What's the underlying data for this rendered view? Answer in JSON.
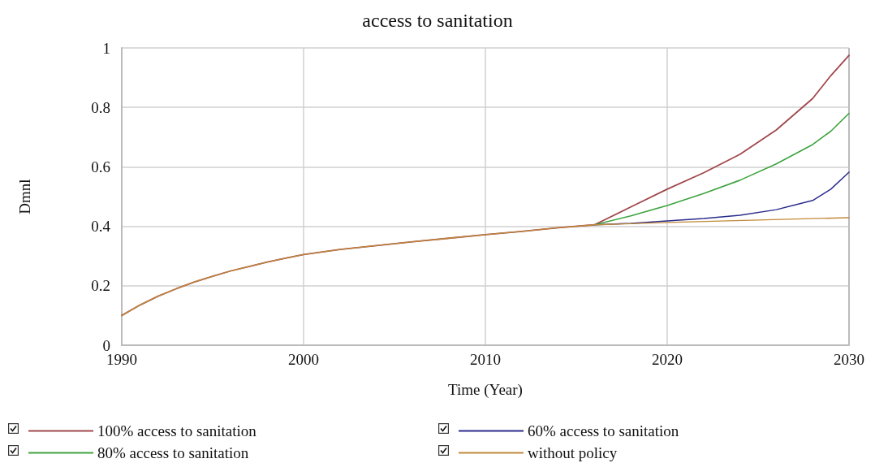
{
  "chart_data": {
    "type": "line",
    "title": "access to sanitation",
    "xlabel": "Time (Year)",
    "ylabel": "Dmnl",
    "xlim": [
      1990,
      2030
    ],
    "xticks": [
      1990,
      2000,
      2010,
      2020,
      2030
    ],
    "ylim": [
      0,
      1
    ],
    "yticks": [
      0,
      0.2,
      0.4,
      0.6,
      0.8,
      1
    ],
    "grid": true,
    "legend": "bottom",
    "marker": "none",
    "line_style": "solid",
    "series": [
      {
        "name": "100% access to sanitation",
        "color": "#a0484c",
        "x": [
          1990,
          1991,
          1992,
          1993,
          1994,
          1995,
          1996,
          1997,
          1998,
          1999,
          2000,
          2002,
          2004,
          2006,
          2008,
          2010,
          2012,
          2014,
          2016,
          2018,
          2020,
          2022,
          2024,
          2026,
          2028,
          2029,
          2030
        ],
        "values": [
          0.1,
          0.135,
          0.165,
          0.19,
          0.213,
          0.232,
          0.25,
          0.265,
          0.28,
          0.293,
          0.305,
          0.322,
          0.335,
          0.348,
          0.36,
          0.372,
          0.383,
          0.395,
          0.405,
          0.465,
          0.525,
          0.58,
          0.642,
          0.724,
          0.83,
          0.907,
          0.975
        ]
      },
      {
        "name": "80% access to sanitation",
        "color": "#3fa33f",
        "x": [
          2016,
          2018,
          2020,
          2022,
          2024,
          2026,
          2028,
          2029,
          2030
        ],
        "values": [
          0.405,
          0.435,
          0.47,
          0.51,
          0.555,
          0.61,
          0.675,
          0.72,
          0.78
        ]
      },
      {
        "name": "60% access to sanitation",
        "color": "#2b2b8c",
        "x": [
          2016,
          2018,
          2020,
          2022,
          2024,
          2026,
          2028,
          2029,
          2030
        ],
        "values": [
          0.405,
          0.41,
          0.418,
          0.426,
          0.437,
          0.456,
          0.487,
          0.525,
          0.582
        ]
      },
      {
        "name": "without policy",
        "color": "#c08a3a",
        "x": [
          1990,
          1991,
          1992,
          1993,
          1994,
          1995,
          1996,
          1997,
          1998,
          1999,
          2000,
          2002,
          2004,
          2006,
          2008,
          2010,
          2012,
          2014,
          2016,
          2020,
          2025,
          2030
        ],
        "values": [
          0.1,
          0.135,
          0.165,
          0.19,
          0.213,
          0.232,
          0.25,
          0.265,
          0.28,
          0.293,
          0.305,
          0.322,
          0.335,
          0.348,
          0.36,
          0.372,
          0.383,
          0.395,
          0.405,
          0.413,
          0.421,
          0.429
        ]
      }
    ]
  }
}
